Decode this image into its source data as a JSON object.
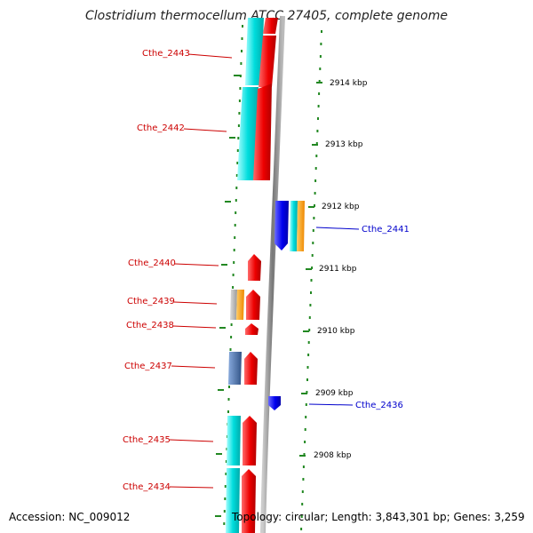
{
  "title": "Clostridium thermocellum ATCC 27405, complete genome",
  "footer": {
    "accession": "Accession: NC_009012",
    "stats": "Topology: circular; Length: 3,843,301 bp; Genes: 3,259"
  },
  "scale_labels": [
    "2914 kbp",
    "2913 kbp",
    "2912 kbp",
    "2911 kbp",
    "2910 kbp",
    "2909 kbp",
    "2908 kbp"
  ],
  "genes_left": [
    "Cthe_2443",
    "Cthe_2442",
    "Cthe_2440",
    "Cthe_2439",
    "Cthe_2438",
    "Cthe_2437",
    "Cthe_2435",
    "Cthe_2434"
  ],
  "genes_right": [
    "Cthe_2441",
    "Cthe_2436"
  ],
  "colors": {
    "left_label": "#cc0000",
    "right_label": "#0000cc",
    "forward_gene": "#ee0000",
    "reverse_gene": "#0000ee",
    "cyan_block": "#00dddd",
    "orange_block": "#ff9900",
    "gray_block": "#aaaaaa",
    "steel_block": "#4477aa",
    "backbone": "#888888",
    "tick": "#228822"
  }
}
